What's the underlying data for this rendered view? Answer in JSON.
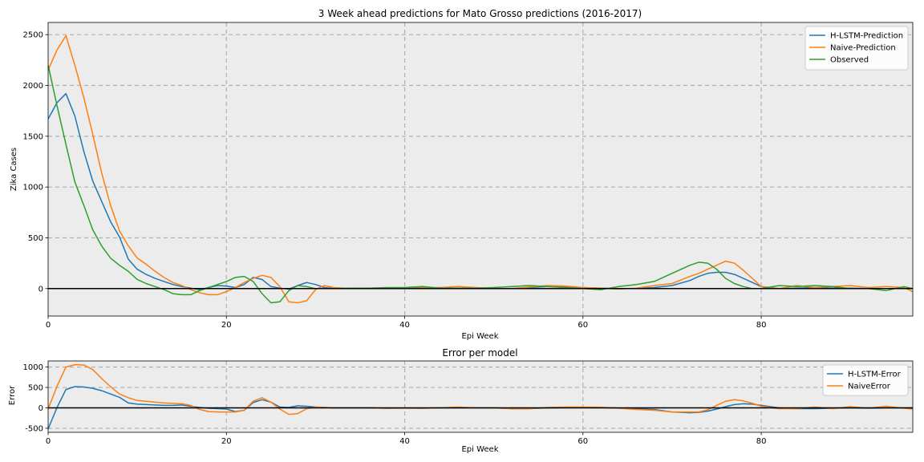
{
  "chart_data": [
    {
      "type": "line",
      "title": "3 Week ahead predictions for Mato Grosso predictions (2016-2017)",
      "xlabel": "Epi Week",
      "ylabel": "Zika Cases",
      "xlim": [
        0,
        97
      ],
      "ylim": [
        -270,
        2620
      ],
      "xticks": [
        0,
        20,
        40,
        60,
        80
      ],
      "yticks": [
        -500,
        0,
        500,
        1000,
        1500,
        2000,
        2500
      ],
      "grid": true,
      "zero_line": true,
      "legend_position": "top-right",
      "background": "#ececec",
      "series": [
        {
          "name": "H-LSTM-Prediction",
          "color": "#1f77b4",
          "x": [
            0,
            1,
            2,
            3,
            4,
            5,
            6,
            7,
            8,
            9,
            10,
            11,
            12,
            13,
            14,
            15,
            16,
            17,
            18,
            19,
            20,
            21,
            22,
            23,
            24,
            25,
            26,
            27,
            28,
            29,
            30,
            31,
            32,
            34,
            36,
            38,
            40,
            42,
            44,
            46,
            48,
            50,
            52,
            54,
            56,
            58,
            60,
            62,
            64,
            66,
            68,
            70,
            72,
            73,
            74,
            75,
            76,
            77,
            78,
            79,
            80,
            82,
            84,
            86,
            88,
            90,
            92,
            94,
            96,
            97
          ],
          "y": [
            1670,
            1830,
            1920,
            1700,
            1350,
            1060,
            860,
            660,
            510,
            290,
            190,
            140,
            100,
            70,
            40,
            20,
            5,
            -10,
            10,
            30,
            25,
            10,
            40,
            110,
            90,
            20,
            5,
            -5,
            30,
            60,
            40,
            10,
            0,
            0,
            0,
            5,
            5,
            10,
            5,
            0,
            0,
            0,
            0,
            10,
            20,
            15,
            10,
            5,
            0,
            0,
            10,
            30,
            80,
            120,
            150,
            160,
            160,
            140,
            100,
            60,
            20,
            0,
            5,
            10,
            5,
            5,
            0,
            0,
            0,
            0
          ]
        },
        {
          "name": "Naive-Prediction",
          "color": "#ff7f0e",
          "x": [
            0,
            1,
            2,
            3,
            4,
            5,
            6,
            7,
            8,
            9,
            10,
            11,
            12,
            13,
            14,
            15,
            16,
            17,
            18,
            19,
            20,
            21,
            22,
            23,
            24,
            25,
            26,
            27,
            28,
            29,
            30,
            31,
            32,
            34,
            36,
            38,
            40,
            42,
            44,
            46,
            48,
            50,
            52,
            54,
            56,
            58,
            60,
            62,
            64,
            66,
            68,
            70,
            72,
            73,
            74,
            75,
            76,
            77,
            78,
            79,
            80,
            82,
            84,
            86,
            88,
            90,
            92,
            94,
            96,
            97
          ],
          "y": [
            2150,
            2350,
            2490,
            2200,
            1880,
            1520,
            1140,
            820,
            570,
            420,
            300,
            240,
            170,
            110,
            60,
            30,
            -10,
            -40,
            -60,
            -60,
            -30,
            10,
            60,
            100,
            130,
            110,
            20,
            -130,
            -140,
            -120,
            -10,
            30,
            10,
            0,
            0,
            0,
            5,
            10,
            10,
            20,
            10,
            0,
            0,
            15,
            30,
            25,
            10,
            5,
            -5,
            5,
            30,
            50,
            120,
            150,
            190,
            230,
            270,
            250,
            180,
            100,
            20,
            0,
            30,
            10,
            20,
            30,
            10,
            20,
            10,
            -30
          ]
        },
        {
          "name": "Observed",
          "color": "#2ca02c",
          "x": [
            0,
            1,
            2,
            3,
            4,
            5,
            6,
            7,
            8,
            9,
            10,
            11,
            12,
            13,
            14,
            15,
            16,
            17,
            18,
            19,
            20,
            21,
            22,
            23,
            24,
            25,
            26,
            27,
            28,
            29,
            30,
            31,
            32,
            34,
            36,
            38,
            40,
            42,
            44,
            46,
            48,
            50,
            52,
            54,
            56,
            58,
            60,
            62,
            64,
            66,
            68,
            70,
            72,
            73,
            74,
            75,
            76,
            77,
            78,
            79,
            80,
            82,
            84,
            86,
            88,
            90,
            92,
            94,
            96,
            97
          ],
          "y": [
            2200,
            1800,
            1420,
            1050,
            820,
            580,
            420,
            300,
            230,
            170,
            90,
            50,
            20,
            -10,
            -50,
            -60,
            -60,
            -20,
            10,
            40,
            70,
            110,
            120,
            70,
            -50,
            -140,
            -130,
            -20,
            30,
            20,
            0,
            0,
            0,
            5,
            5,
            10,
            10,
            20,
            5,
            5,
            5,
            10,
            20,
            30,
            20,
            10,
            0,
            -10,
            20,
            40,
            70,
            150,
            230,
            260,
            250,
            190,
            100,
            50,
            20,
            0,
            0,
            30,
            20,
            30,
            20,
            0,
            0,
            -20,
            20,
            0
          ]
        }
      ]
    },
    {
      "type": "line",
      "title": "Error per model",
      "xlabel": "Epi Week",
      "ylabel": "Error",
      "xlim": [
        0,
        97
      ],
      "ylim": [
        -600,
        1150
      ],
      "xticks": [
        0,
        20,
        40,
        60,
        80
      ],
      "yticks": [
        -500,
        0,
        500,
        1000
      ],
      "grid": true,
      "zero_line": true,
      "legend_position": "top-right",
      "background": "#ececec",
      "series": [
        {
          "name": "H-LSTM-Error",
          "color": "#1f77b4",
          "x": [
            0,
            1,
            2,
            3,
            4,
            5,
            6,
            7,
            8,
            9,
            10,
            11,
            12,
            13,
            14,
            15,
            16,
            17,
            18,
            19,
            20,
            21,
            22,
            23,
            24,
            25,
            26,
            27,
            28,
            29,
            30,
            31,
            32,
            34,
            36,
            38,
            40,
            42,
            44,
            46,
            48,
            50,
            52,
            54,
            56,
            58,
            60,
            62,
            64,
            66,
            68,
            70,
            72,
            73,
            74,
            75,
            76,
            77,
            78,
            79,
            80,
            82,
            84,
            86,
            88,
            90,
            92,
            94,
            96,
            97
          ],
          "y": [
            -520,
            10,
            450,
            520,
            510,
            480,
            420,
            340,
            260,
            120,
            90,
            80,
            70,
            60,
            60,
            70,
            40,
            10,
            -10,
            -20,
            -30,
            -90,
            -60,
            130,
            200,
            140,
            20,
            10,
            50,
            40,
            20,
            10,
            0,
            0,
            0,
            -10,
            -5,
            -10,
            0,
            0,
            0,
            0,
            -20,
            -20,
            0,
            5,
            10,
            5,
            -5,
            -20,
            -40,
            -100,
            -120,
            -110,
            -80,
            -30,
            30,
            80,
            100,
            90,
            60,
            0,
            -20,
            -20,
            -10,
            0,
            -10,
            0,
            0,
            0
          ]
        },
        {
          "name": "NaiveError",
          "color": "#ff7f0e",
          "x": [
            0,
            1,
            2,
            3,
            4,
            5,
            6,
            7,
            8,
            9,
            10,
            11,
            12,
            13,
            14,
            15,
            16,
            17,
            18,
            19,
            20,
            21,
            22,
            23,
            24,
            25,
            26,
            27,
            28,
            29,
            30,
            31,
            32,
            34,
            36,
            38,
            40,
            42,
            44,
            46,
            48,
            50,
            52,
            54,
            56,
            58,
            60,
            62,
            64,
            66,
            68,
            70,
            72,
            73,
            74,
            75,
            76,
            77,
            78,
            79,
            80,
            82,
            84,
            86,
            88,
            90,
            92,
            94,
            96,
            97
          ],
          "y": [
            -30,
            530,
            1000,
            1060,
            1050,
            940,
            720,
            520,
            340,
            250,
            180,
            160,
            140,
            120,
            110,
            100,
            60,
            -40,
            -90,
            -100,
            -100,
            -100,
            -60,
            160,
            250,
            140,
            -30,
            -160,
            -140,
            -20,
            20,
            10,
            0,
            0,
            0,
            -10,
            -10,
            -10,
            0,
            20,
            0,
            0,
            -20,
            -20,
            10,
            20,
            20,
            15,
            -10,
            -40,
            -60,
            -100,
            -100,
            -100,
            -50,
            60,
            160,
            200,
            170,
            110,
            40,
            -20,
            -20,
            20,
            -20,
            30,
            -10,
            40,
            -10,
            -30
          ]
        }
      ]
    }
  ]
}
